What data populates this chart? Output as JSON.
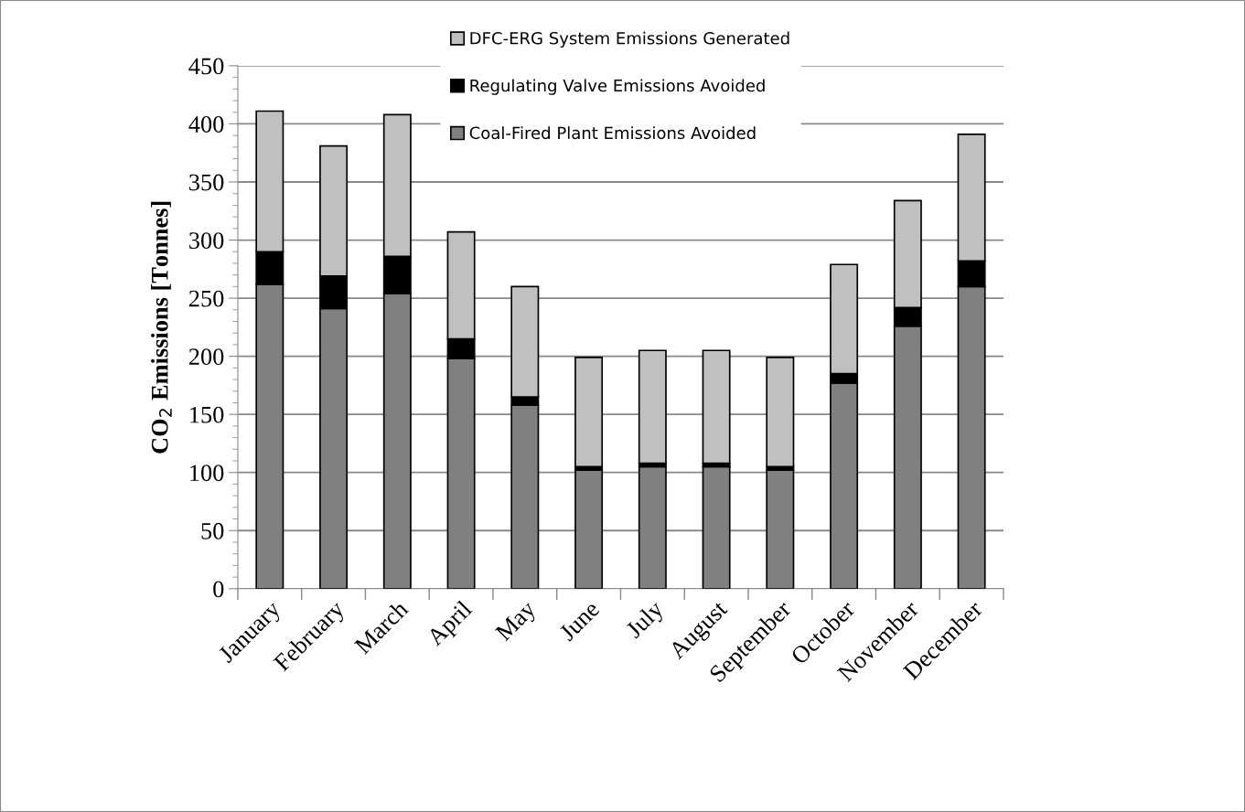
{
  "chart_data": {
    "type": "bar",
    "stacked": true,
    "ylabel": "CO$_{2}$ Emissions [Tonnes]",
    "categories": [
      "January",
      "February",
      "March",
      "April",
      "May",
      "June",
      "July",
      "August",
      "September",
      "October",
      "November",
      "December"
    ],
    "series": [
      {
        "name": "Coal-Fired Plant Emissions Avoided",
        "color": "#808080",
        "values": [
          262,
          241,
          254,
          198,
          158,
          102,
          105,
          105,
          102,
          177,
          226,
          260
        ]
      },
      {
        "name": "Regulating Valve Emissions Avoided",
        "color": "#000000",
        "values": [
          28,
          28,
          32,
          17,
          7,
          3,
          3,
          3,
          3,
          8,
          16,
          22
        ]
      },
      {
        "name": "DFC-ERG System Emissions Generated",
        "color": "#c0c0c0",
        "values": [
          121,
          112,
          122,
          92,
          95,
          94,
          97,
          97,
          94,
          94,
          92,
          109
        ]
      }
    ],
    "ylim": [
      0,
      450
    ],
    "yticks": [
      0,
      50,
      100,
      150,
      200,
      250,
      300,
      350,
      400,
      450
    ],
    "grid": "y",
    "legend": "top"
  }
}
